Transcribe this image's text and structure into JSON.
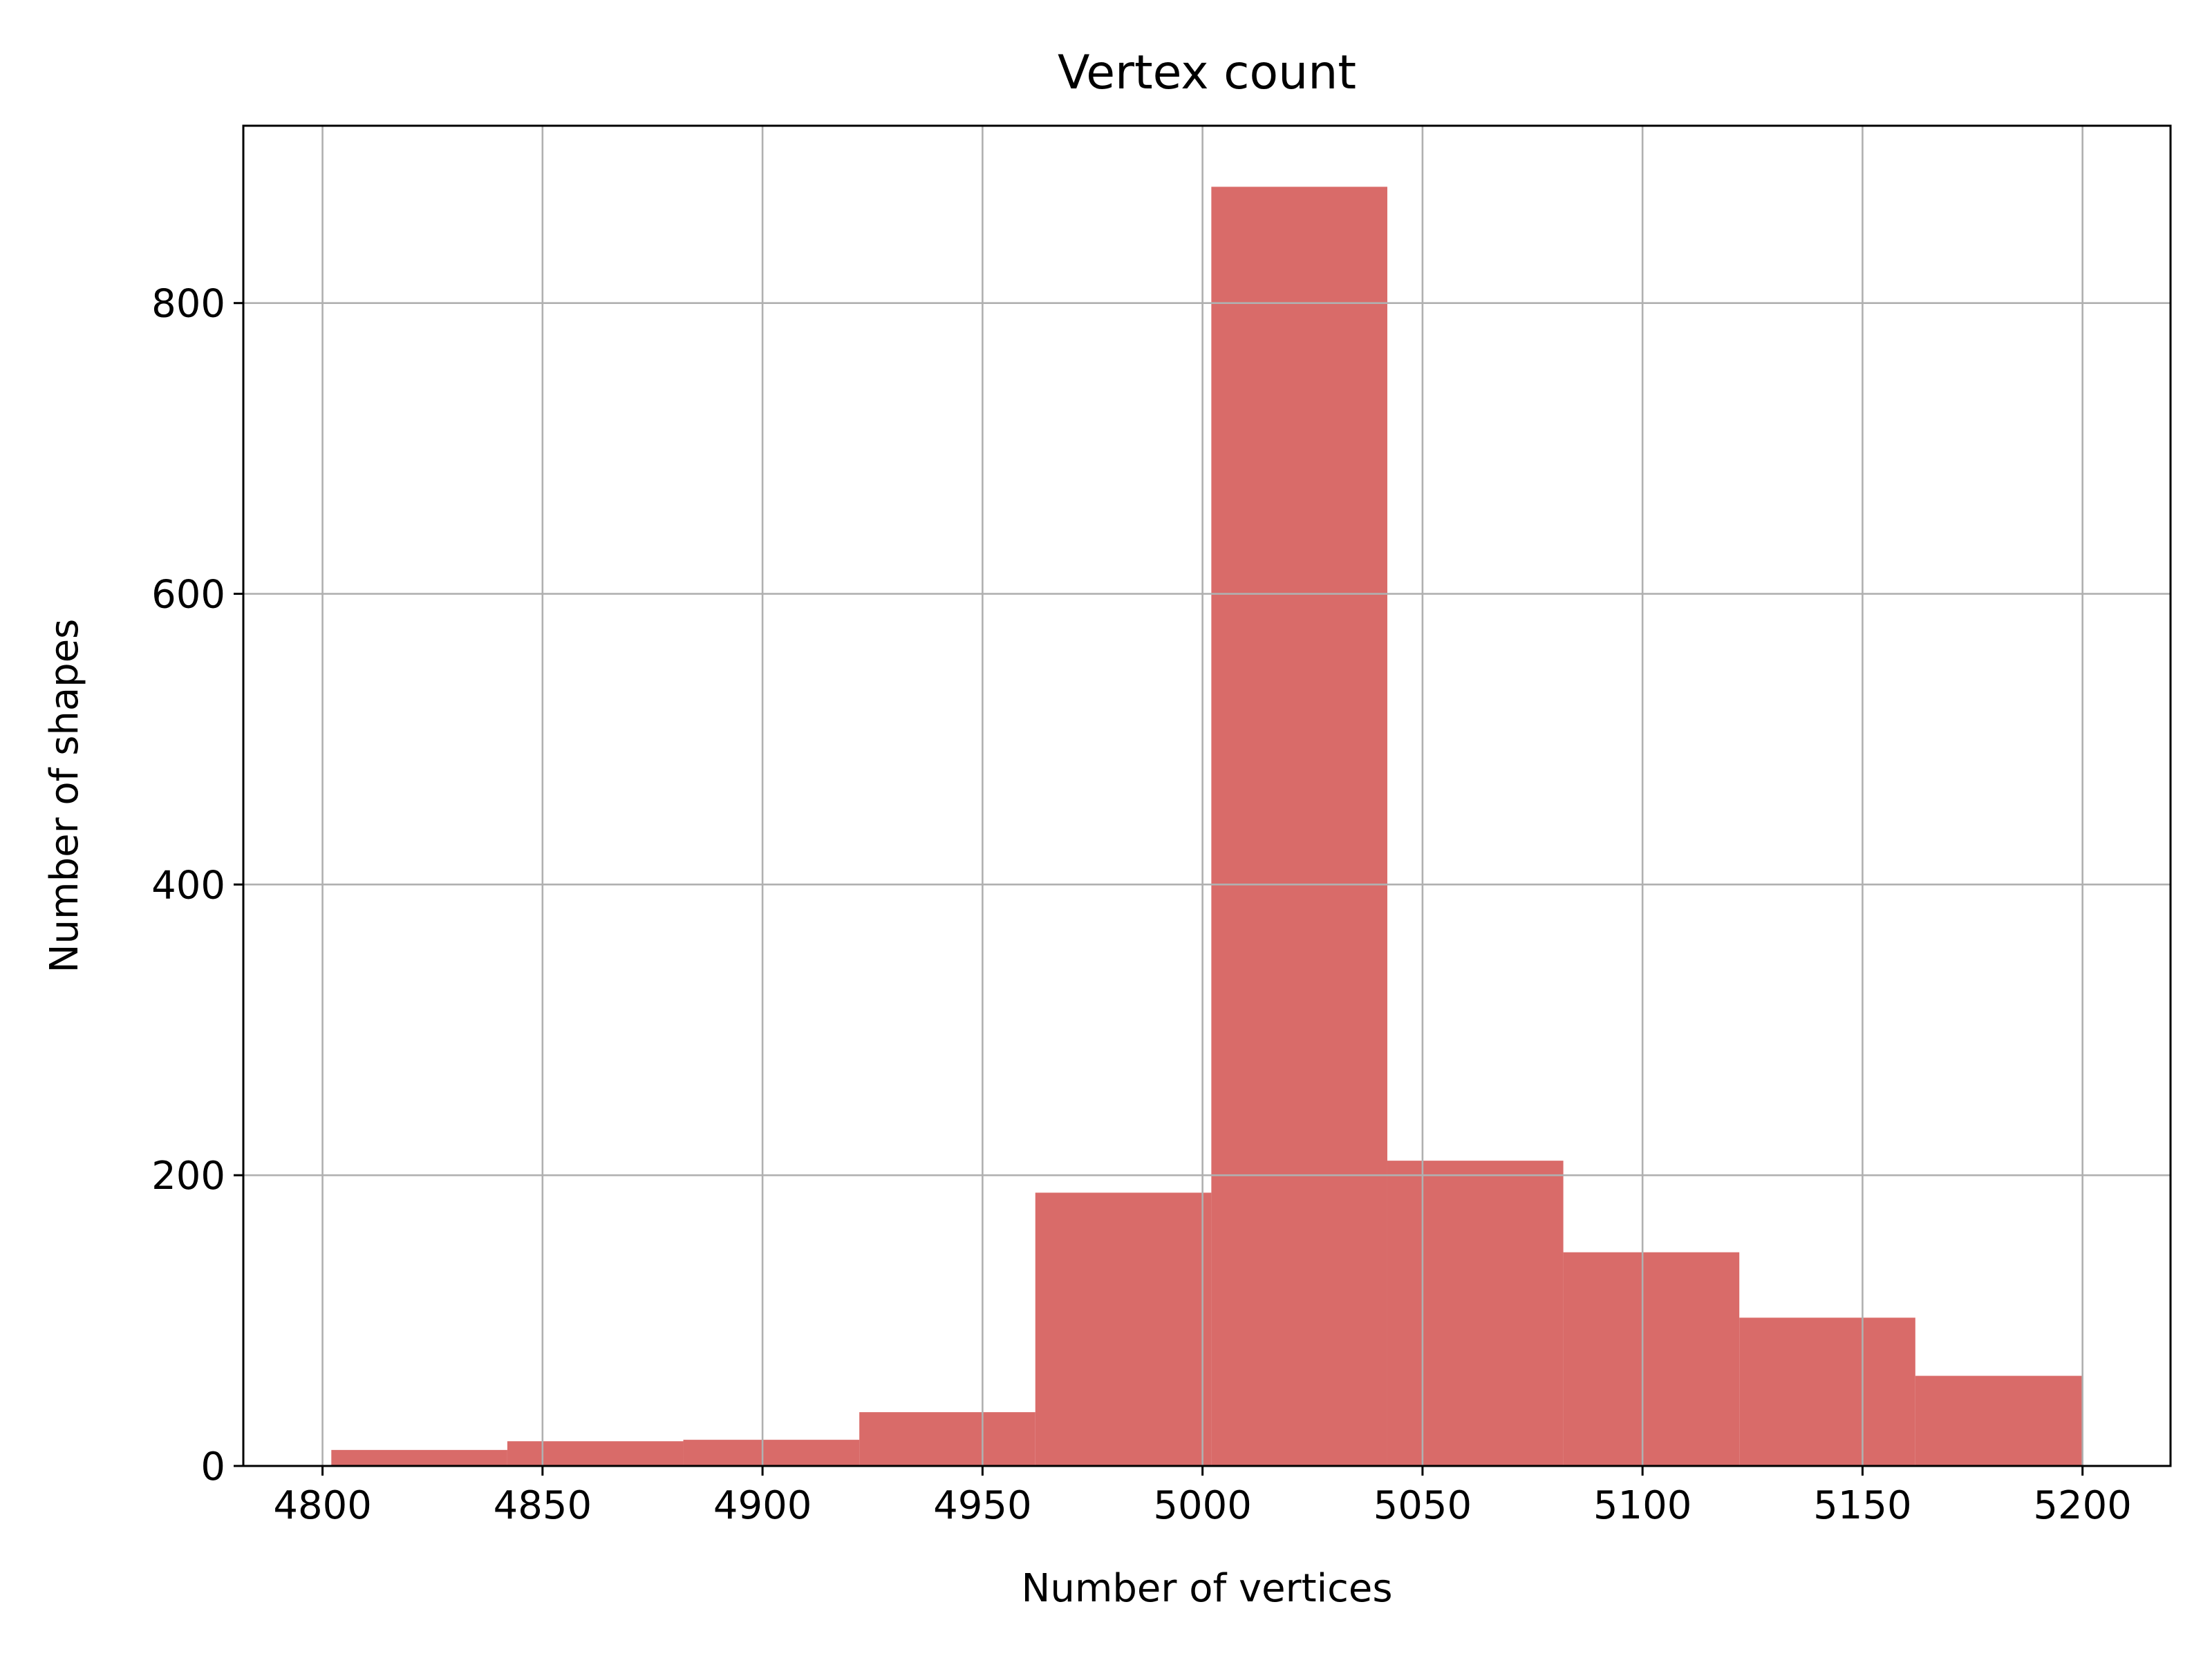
{
  "chart_data": {
    "type": "bar",
    "title": "Vertex count",
    "xlabel": "Number of vertices",
    "ylabel": "Number of shapes",
    "xlim": [
      4782,
      5220
    ],
    "ylim": [
      0,
      922
    ],
    "xticks": [
      4800,
      4850,
      4900,
      4950,
      5000,
      5050,
      5100,
      5150,
      5200
    ],
    "yticks": [
      0,
      200,
      400,
      600,
      800
    ],
    "grid": true,
    "bar_color": "#d96b69",
    "bins": [
      {
        "x0": 4802,
        "x1": 4842,
        "value": 11
      },
      {
        "x0": 4842,
        "x1": 4882,
        "value": 17
      },
      {
        "x0": 4882,
        "x1": 4922,
        "value": 18
      },
      {
        "x0": 4922,
        "x1": 4962,
        "value": 37
      },
      {
        "x0": 4962,
        "x1": 5002,
        "value": 188
      },
      {
        "x0": 5002,
        "x1": 5042,
        "value": 880
      },
      {
        "x0": 5042,
        "x1": 5082,
        "value": 210
      },
      {
        "x0": 5082,
        "x1": 5122,
        "value": 147
      },
      {
        "x0": 5122,
        "x1": 5162,
        "value": 102
      },
      {
        "x0": 5162,
        "x1": 5200,
        "value": 62
      }
    ]
  }
}
